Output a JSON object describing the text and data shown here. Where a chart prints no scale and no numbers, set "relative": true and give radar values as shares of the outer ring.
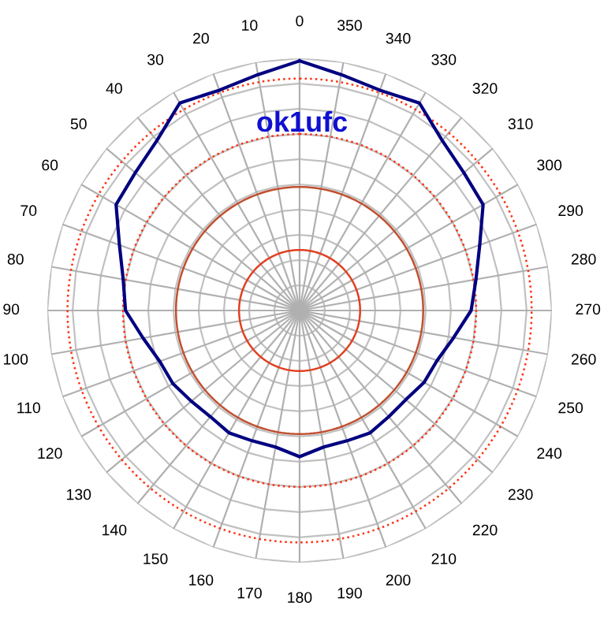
{
  "chart_data": {
    "type": "radar",
    "title": "ok1ufc",
    "relative": true,
    "grid": true,
    "legend": false,
    "marker": "none",
    "line_style": "solid",
    "categories": [
      "0",
      "350",
      "340",
      "330",
      "320",
      "310",
      "300",
      "290",
      "280",
      "270",
      "260",
      "250",
      "240",
      "230",
      "220",
      "210",
      "200",
      "190",
      "180",
      "170",
      "160",
      "150",
      "140",
      "130",
      "120",
      "110",
      "100",
      "90",
      "80",
      "70",
      "60",
      "50",
      "40",
      "30",
      "20",
      "10"
    ],
    "series": [
      {
        "color": "#000080",
        "values": [
          0.99,
          0.95,
          0.93,
          0.95,
          0.88,
          0.85,
          0.84,
          0.76,
          0.71,
          0.68,
          0.62,
          0.58,
          0.57,
          0.55,
          0.55,
          0.56,
          0.55,
          0.55,
          0.58,
          0.55,
          0.55,
          0.56,
          0.55,
          0.56,
          0.58,
          0.59,
          0.63,
          0.69,
          0.71,
          0.76,
          0.84,
          0.85,
          0.88,
          0.95,
          0.93,
          0.95
        ]
      }
    ]
  }
}
